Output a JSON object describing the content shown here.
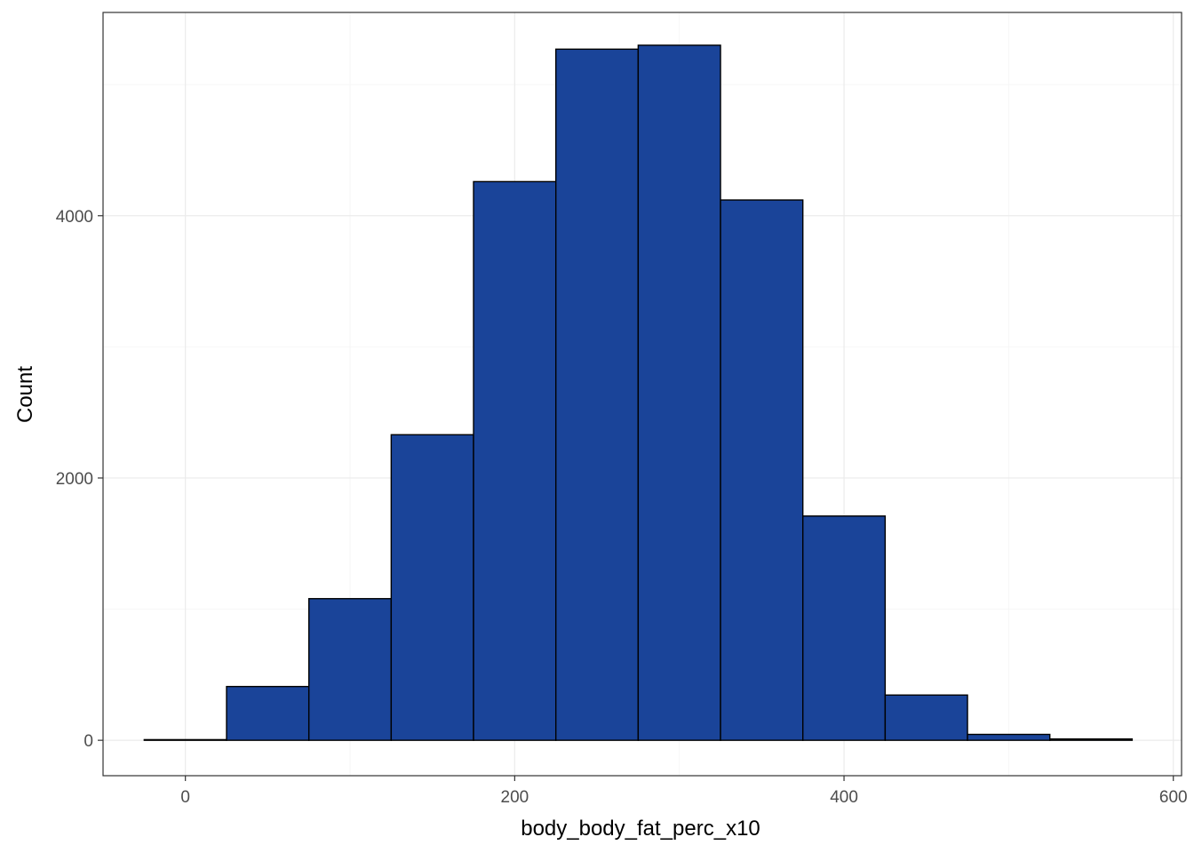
{
  "chart_data": {
    "type": "bar",
    "subtype": "histogram",
    "title": "",
    "xlabel": "body_body_fat_perc_x10",
    "ylabel": "Count",
    "xlim": [
      -50,
      605
    ],
    "ylim": [
      -270,
      5550
    ],
    "x_ticks": [
      0,
      200,
      400,
      600
    ],
    "x_tick_labels": [
      "0",
      "200",
      "400",
      "600"
    ],
    "y_ticks": [
      0,
      2000,
      4000
    ],
    "y_tick_labels": [
      "0",
      "2000",
      "4000"
    ],
    "grid": true,
    "bin_width": 50,
    "bins": [
      {
        "x0": -25,
        "x1": 25,
        "count": 5
      },
      {
        "x0": 25,
        "x1": 75,
        "count": 410
      },
      {
        "x0": 75,
        "x1": 125,
        "count": 1080
      },
      {
        "x0": 125,
        "x1": 175,
        "count": 2330
      },
      {
        "x0": 175,
        "x1": 225,
        "count": 4260
      },
      {
        "x0": 225,
        "x1": 275,
        "count": 5270
      },
      {
        "x0": 275,
        "x1": 325,
        "count": 5300
      },
      {
        "x0": 325,
        "x1": 375,
        "count": 4120
      },
      {
        "x0": 375,
        "x1": 425,
        "count": 1710
      },
      {
        "x0": 425,
        "x1": 475,
        "count": 345
      },
      {
        "x0": 475,
        "x1": 525,
        "count": 45
      },
      {
        "x0": 525,
        "x1": 575,
        "count": 10
      }
    ],
    "colors": {
      "fill": "#1a4499",
      "outline": "#000000",
      "grid_major": "#ebebeb",
      "grid_minor": "#f5f5f5",
      "panel_border": "#333333",
      "tick_text": "#4d4d4d"
    }
  }
}
